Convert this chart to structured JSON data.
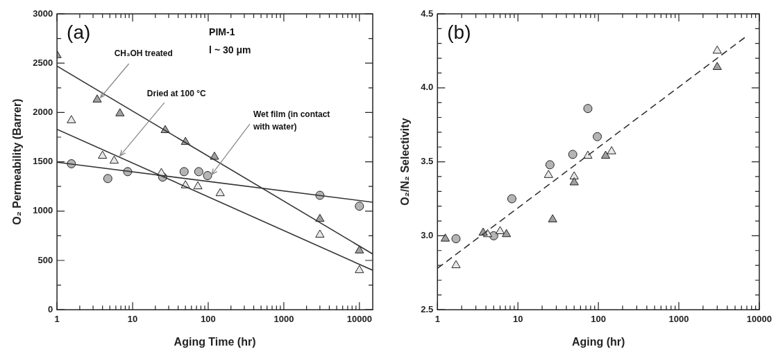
{
  "chart_data": [
    {
      "type": "scatter",
      "title": "(a)",
      "xlabel": "Aging Time (hr)",
      "ylabel": "O₂ Permeability (Barrer)",
      "log": "x",
      "xlim": [
        1,
        15000
      ],
      "ylim": [
        0,
        3000
      ],
      "xticks": [
        1,
        {
          "value": 2,
          "label": null
        },
        {
          "value": 3,
          "label": null
        },
        {
          "value": 4,
          "label": null
        },
        {
          "value": 5,
          "label": null
        },
        {
          "value": 6,
          "label": null
        },
        {
          "value": 7,
          "label": null
        },
        {
          "value": 8,
          "label": null
        },
        {
          "value": 9,
          "label": null
        },
        10,
        {
          "value": 20,
          "label": null
        },
        {
          "value": 30,
          "label": null
        },
        {
          "value": 40,
          "label": null
        },
        {
          "value": 50,
          "label": null
        },
        {
          "value": 60,
          "label": null
        },
        {
          "value": 70,
          "label": null
        },
        {
          "value": 80,
          "label": null
        },
        {
          "value": 90,
          "label": null
        },
        100,
        {
          "value": 200,
          "label": null
        },
        {
          "value": 300,
          "label": null
        },
        {
          "value": 400,
          "label": null
        },
        {
          "value": 500,
          "label": null
        },
        {
          "value": 600,
          "label": null
        },
        {
          "value": 700,
          "label": null
        },
        {
          "value": 800,
          "label": null
        },
        {
          "value": 900,
          "label": null
        },
        1000,
        {
          "value": 2000,
          "label": null
        },
        {
          "value": 3000,
          "label": null
        },
        {
          "value": 4000,
          "label": null
        },
        {
          "value": 5000,
          "label": null
        },
        {
          "value": 6000,
          "label": null
        },
        {
          "value": 7000,
          "label": null
        },
        {
          "value": 8000,
          "label": null
        },
        {
          "value": 9000,
          "label": null
        },
        10000
      ],
      "yticks": [
        0,
        {
          "value": 250,
          "label": null
        },
        500,
        {
          "value": 750,
          "label": null
        },
        1000,
        {
          "value": 1250,
          "label": null
        },
        1500,
        {
          "value": 1750,
          "label": null
        },
        2000,
        {
          "value": 2250,
          "label": null
        },
        2500,
        {
          "value": 2750,
          "label": null
        },
        3000
      ],
      "series": [
        {
          "type": "scatter",
          "marker": "triangle",
          "color": "#a0a0a0",
          "x": [
            1,
            3.4,
            6.8,
            27,
            50,
            121,
            3000,
            10000
          ],
          "values": [
            2580,
            2130,
            1990,
            1820,
            1700,
            1550,
            920,
            600
          ]
        },
        {
          "type": "scatter",
          "marker": "triangle",
          "color": "#e8e8e8",
          "x": [
            1.55,
            4,
            5.7,
            24,
            50,
            73,
            144,
            3000,
            10000
          ],
          "values": [
            1920,
            1560,
            1510,
            1385,
            1260,
            1250,
            1180,
            760,
            400
          ]
        },
        {
          "type": "scatter",
          "marker": "circle",
          "color": "#b4b4b4",
          "x": [
            1.55,
            4.7,
            8.6,
            25,
            48,
            75,
            98,
            3000,
            10000
          ],
          "values": [
            1480,
            1330,
            1400,
            1345,
            1400,
            1400,
            1360,
            1160,
            1050
          ]
        },
        {
          "type": "line",
          "color": "#333333",
          "x": [
            1,
            15000
          ],
          "values": [
            2470,
            565
          ]
        },
        {
          "type": "line",
          "color": "#333333",
          "x": [
            1,
            15000
          ],
          "values": [
            1830,
            400
          ]
        },
        {
          "type": "line",
          "color": "#333333",
          "x": [
            1,
            15000
          ],
          "values": [
            1495,
            1090
          ]
        }
      ],
      "annotations": [
        "PIM-1",
        "l ~ 30 μm",
        {
          "text": "CH₃OH treated",
          "x": 3.75,
          "y": 2150
        },
        {
          "text": "Dried at 100 °C",
          "x": 6.8,
          "y": 1560
        },
        {
          "text": "Wet film (in contact with water)",
          "x": 111,
          "y": 1370
        }
      ]
    },
    {
      "type": "scatter",
      "title": "(b)",
      "xlabel": "Aging (hr)",
      "ylabel": "O₂/N₂ Selectivity",
      "log": "x",
      "xlim": [
        1,
        10000
      ],
      "ylim": [
        2.5,
        4.5
      ],
      "xticks": [
        1,
        {
          "value": 2,
          "label": null
        },
        {
          "value": 3,
          "label": null
        },
        {
          "value": 4,
          "label": null
        },
        {
          "value": 5,
          "label": null
        },
        {
          "value": 6,
          "label": null
        },
        {
          "value": 7,
          "label": null
        },
        {
          "value": 8,
          "label": null
        },
        {
          "value": 9,
          "label": null
        },
        10,
        {
          "value": 20,
          "label": null
        },
        {
          "value": 30,
          "label": null
        },
        {
          "value": 40,
          "label": null
        },
        {
          "value": 50,
          "label": null
        },
        {
          "value": 60,
          "label": null
        },
        {
          "value": 70,
          "label": null
        },
        {
          "value": 80,
          "label": null
        },
        {
          "value": 90,
          "label": null
        },
        100,
        {
          "value": 200,
          "label": null
        },
        {
          "value": 300,
          "label": null
        },
        {
          "value": 400,
          "label": null
        },
        {
          "value": 500,
          "label": null
        },
        {
          "value": 600,
          "label": null
        },
        {
          "value": 700,
          "label": null
        },
        {
          "value": 800,
          "label": null
        },
        {
          "value": 900,
          "label": null
        },
        1000,
        {
          "value": 2000,
          "label": null
        },
        {
          "value": 3000,
          "label": null
        },
        {
          "value": 4000,
          "label": null
        },
        {
          "value": 5000,
          "label": null
        },
        {
          "value": 6000,
          "label": null
        },
        {
          "value": 7000,
          "label": null
        },
        {
          "value": 8000,
          "label": null
        },
        {
          "value": 9000,
          "label": null
        },
        10000
      ],
      "yticks": [
        2.5,
        {
          "value": 2.6,
          "label": null
        },
        {
          "value": 2.7,
          "label": null
        },
        {
          "value": 2.8,
          "label": null
        },
        {
          "value": 2.9,
          "label": null
        },
        {
          "value": 3,
          "label": "3.0"
        },
        {
          "value": 3.1,
          "label": null
        },
        {
          "value": 3.2,
          "label": null
        },
        {
          "value": 3.3,
          "label": null
        },
        {
          "value": 3.4,
          "label": null
        },
        3.5,
        {
          "value": 3.6,
          "label": null
        },
        {
          "value": 3.7,
          "label": null
        },
        {
          "value": 3.8,
          "label": null
        },
        {
          "value": 3.9,
          "label": null
        },
        {
          "value": 4,
          "label": "4.0"
        },
        {
          "value": 4.1,
          "label": null
        },
        {
          "value": 4.2,
          "label": null
        },
        {
          "value": 4.3,
          "label": null
        },
        {
          "value": 4.4,
          "label": null
        },
        4.5
      ],
      "series": [
        {
          "type": "scatter",
          "marker": "triangle",
          "color": "#a0a0a0",
          "x": [
            1.25,
            3.7,
            7.2,
            27,
            50,
            123,
            3000
          ],
          "values": [
            2.98,
            3.02,
            3.01,
            3.11,
            3.36,
            3.54,
            4.14
          ]
        },
        {
          "type": "scatter",
          "marker": "triangle",
          "color": "#e8e8e8",
          "x": [
            1.7,
            4.2,
            6,
            24,
            50,
            74,
            146,
            3000
          ],
          "values": [
            2.8,
            3.01,
            3.03,
            3.41,
            3.4,
            3.54,
            3.57,
            4.25
          ]
        },
        {
          "type": "scatter",
          "marker": "circle",
          "color": "#b4b4b4",
          "x": [
            1.7,
            5,
            8.4,
            25,
            48,
            74,
            97
          ],
          "values": [
            2.98,
            3,
            3.25,
            3.48,
            3.55,
            3.86,
            3.67
          ]
        },
        {
          "type": "line",
          "line_style": "dashed",
          "color": "#333333",
          "x": [
            1,
            6600
          ],
          "values": [
            2.78,
            4.34
          ]
        }
      ]
    }
  ]
}
